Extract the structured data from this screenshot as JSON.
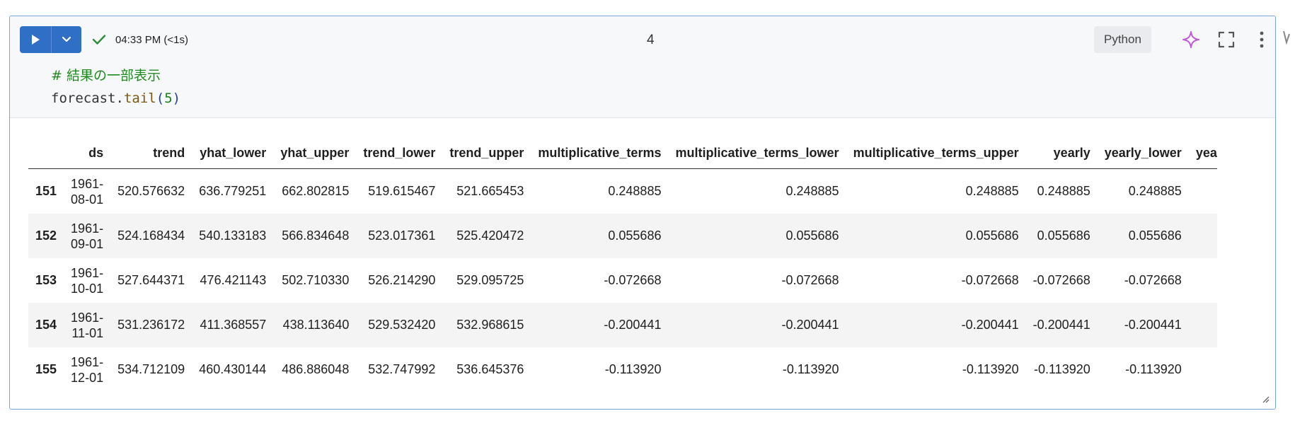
{
  "cell": {
    "status_time": "04:33 PM (<1s)",
    "number": "4",
    "language": "Python",
    "code": {
      "comment": "# 結果の一部表示",
      "object": "forecast",
      "dot": ".",
      "method": "tail",
      "open_paren": "(",
      "arg": "5",
      "close_paren": ")"
    }
  },
  "icons": {
    "run": "play-icon",
    "run_menu": "chevron-down-icon",
    "status": "check-icon",
    "assistant": "sparkle-icon",
    "fullscreen": "expand-icon",
    "more": "kebab-menu-icon"
  },
  "colors": {
    "run_button": "#2f6fc6",
    "success_check": "#2e8b3a",
    "sparkle": "#c05bd6",
    "cell_border": "#7aa6d6"
  },
  "table": {
    "columns": [
      "",
      "ds",
      "trend",
      "yhat_lower",
      "yhat_upper",
      "trend_lower",
      "trend_upper",
      "multiplicative_terms",
      "multiplicative_terms_lower",
      "multiplicative_terms_upper",
      "yearly",
      "yearly_lower",
      "yea"
    ],
    "rows": [
      {
        "idx": "151",
        "ds1": "1961-",
        "ds2": "08-01",
        "trend": "520.576632",
        "yhat_lower": "636.779251",
        "yhat_upper": "662.802815",
        "trend_lower": "519.615467",
        "trend_upper": "521.665453",
        "mt": "0.248885",
        "mt_lower": "0.248885",
        "mt_upper": "0.248885",
        "yearly": "0.248885",
        "yearly_lower": "0.248885"
      },
      {
        "idx": "152",
        "ds1": "1961-",
        "ds2": "09-01",
        "trend": "524.168434",
        "yhat_lower": "540.133183",
        "yhat_upper": "566.834648",
        "trend_lower": "523.017361",
        "trend_upper": "525.420472",
        "mt": "0.055686",
        "mt_lower": "0.055686",
        "mt_upper": "0.055686",
        "yearly": "0.055686",
        "yearly_lower": "0.055686"
      },
      {
        "idx": "153",
        "ds1": "1961-",
        "ds2": "10-01",
        "trend": "527.644371",
        "yhat_lower": "476.421143",
        "yhat_upper": "502.710330",
        "trend_lower": "526.214290",
        "trend_upper": "529.095725",
        "mt": "-0.072668",
        "mt_lower": "-0.072668",
        "mt_upper": "-0.072668",
        "yearly": "-0.072668",
        "yearly_lower": "-0.072668"
      },
      {
        "idx": "154",
        "ds1": "1961-",
        "ds2": "11-01",
        "trend": "531.236172",
        "yhat_lower": "411.368557",
        "yhat_upper": "438.113640",
        "trend_lower": "529.532420",
        "trend_upper": "532.968615",
        "mt": "-0.200441",
        "mt_lower": "-0.200441",
        "mt_upper": "-0.200441",
        "yearly": "-0.200441",
        "yearly_lower": "-0.200441"
      },
      {
        "idx": "155",
        "ds1": "1961-",
        "ds2": "12-01",
        "trend": "534.712109",
        "yhat_lower": "460.430144",
        "yhat_upper": "486.886048",
        "trend_lower": "532.747992",
        "trend_upper": "536.645376",
        "mt": "-0.113920",
        "mt_lower": "-0.113920",
        "mt_upper": "-0.113920",
        "yearly": "-0.113920",
        "yearly_lower": "-0.113920"
      }
    ]
  }
}
